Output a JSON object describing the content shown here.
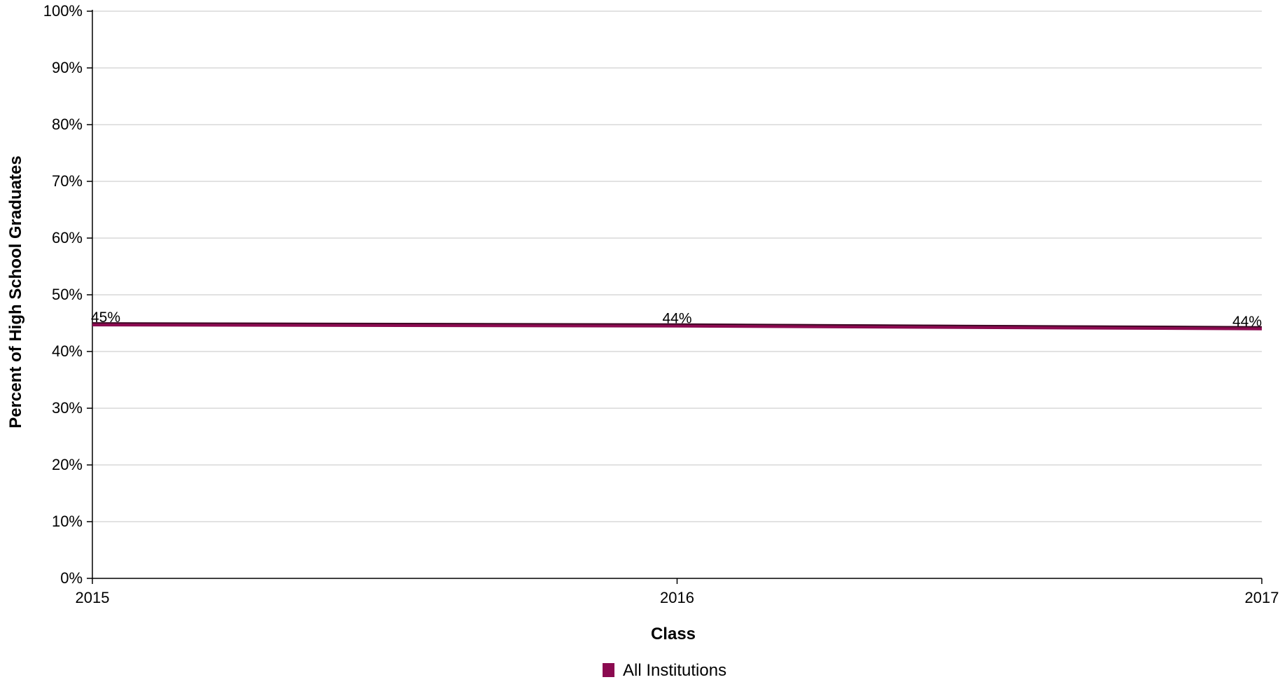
{
  "chart_data": {
    "type": "line",
    "title": "",
    "xlabel": "Class",
    "ylabel": "Percent of High School Graduates",
    "x": [
      "2015",
      "2016",
      "2017"
    ],
    "series": [
      {
        "name": "All Institutions",
        "values": [
          45,
          44,
          44
        ],
        "plotted_values": [
          44.8,
          44.6,
          44.1
        ],
        "labels": [
          "45%",
          "44%",
          "44%"
        ],
        "color": "#8B0A50"
      }
    ],
    "ylim": [
      0,
      100
    ],
    "yticks": [
      0,
      10,
      20,
      30,
      40,
      50,
      60,
      70,
      80,
      90,
      100
    ],
    "ytick_labels": [
      "0%",
      "10%",
      "20%",
      "30%",
      "40%",
      "50%",
      "60%",
      "70%",
      "80%",
      "90%",
      "100%"
    ],
    "grid": true,
    "legend": "bottom-center"
  }
}
